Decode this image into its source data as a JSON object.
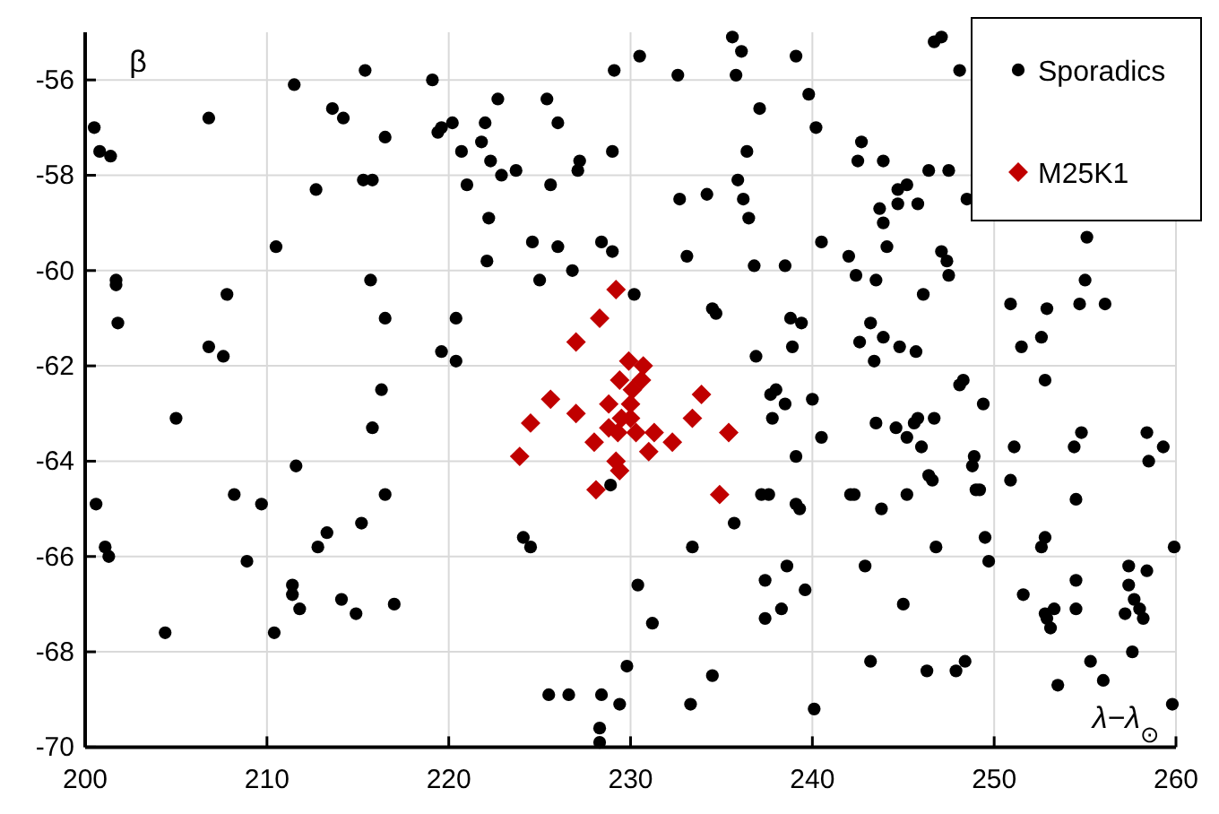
{
  "chart_data": {
    "type": "scatter",
    "xlabel": "λ−λ$_{⊙}$",
    "ylabel": "β",
    "xlim": [
      200,
      260
    ],
    "ylim": [
      -70,
      -55
    ],
    "xticks": [
      200,
      210,
      220,
      230,
      240,
      250,
      260
    ],
    "yticks": [
      -70,
      -68,
      -66,
      -64,
      -62,
      -60,
      -58,
      -56
    ],
    "grid": true,
    "legend": "top right",
    "series": [
      {
        "name": "Sporadics",
        "color": "#000000",
        "marker": "circle",
        "x": [
          200.5,
          200.8,
          201.4,
          206.8,
          211.5,
          213.6,
          214.2,
          215.4,
          216.5,
          219.1,
          219.4,
          219.6,
          220.2,
          212.7,
          215.3,
          215.8,
          210.5,
          201.7,
          201.7,
          215.7,
          207.8,
          216.5,
          220.4,
          201.8,
          206.8,
          207.6,
          219.6,
          220.4,
          216.3,
          235.6,
          236.1,
          239.1,
          230.5,
          229.1,
          232.6,
          235.8,
          222.7,
          225.4,
          237.1,
          239.8,
          240.2,
          222.0,
          226.0,
          221.8,
          220.7,
          222.3,
          222.9,
          223.7,
          227.2,
          227.1,
          229.0,
          236.4,
          221.0,
          225.6,
          235.9,
          232.7,
          234.2,
          236.2,
          222.2,
          236.5,
          224.6,
          226.0,
          228.4,
          229.0,
          240.5,
          222.1,
          226.8,
          233.1,
          236.8,
          238.5,
          225.0,
          230.2,
          234.5,
          234.7,
          238.8,
          239.4,
          238.9,
          236.9,
          238.0,
          228.9,
          237.7,
          238.5,
          240.0,
          240.5,
          237.8,
          239.1,
          237.2,
          237.6,
          239.1,
          239.3,
          235.7,
          233.4,
          224.1,
          224.5,
          230.4,
          237.4,
          238.6,
          239.6,
          231.2,
          238.3,
          237.4,
          229.8,
          234.5,
          225.5,
          226.6,
          228.4,
          229.4,
          233.3,
          240.1,
          228.3,
          228.3,
          215.8,
          205.0,
          211.6,
          200.6,
          208.2,
          209.7,
          216.5,
          215.2,
          213.3,
          212.8,
          201.1,
          201.3,
          208.9,
          211.4,
          211.4,
          211.8,
          214.1,
          214.9,
          217.0,
          204.4,
          210.4,
          246.7,
          247.1,
          248.1,
          242.7,
          242.5,
          243.9,
          246.4,
          247.5,
          248.5,
          244.7,
          245.2,
          243.7,
          244.7,
          245.8,
          243.9,
          244.1,
          242.0,
          242.4,
          243.5,
          247.1,
          247.4,
          247.5,
          246.1,
          255.1,
          255.0,
          250.9,
          252.9,
          254.7,
          256.1,
          243.2,
          242.6,
          243.9,
          243.4,
          244.8,
          245.7,
          251.5,
          252.6,
          248.3,
          248.1,
          252.8,
          249.4,
          243.5,
          244.6,
          245.2,
          245.6,
          245.8,
          246.7,
          246.0,
          248.8,
          248.9,
          251.1,
          254.4,
          254.8,
          258.4,
          259.3,
          258.5,
          250.9,
          254.5,
          242.1,
          242.3,
          243.8,
          245.2,
          246.4,
          246.6,
          249.0,
          249.2,
          246.8,
          249.5,
          249.7,
          242.9,
          245.0,
          252.8,
          252.6,
          259.9,
          251.6,
          254.5,
          257.4,
          258.4,
          257.4,
          257.7,
          258.0,
          258.2,
          257.2,
          254.5,
          252.8,
          253.3,
          252.9,
          253.1,
          257.6,
          255.3,
          256.0,
          253.5,
          243.2,
          246.3,
          247.9,
          248.4,
          259.8
        ],
        "values": [
          -57.0,
          -57.5,
          -57.6,
          -56.8,
          -56.1,
          -56.6,
          -56.8,
          -55.8,
          -57.2,
          -56.0,
          -57.1,
          -57.0,
          -56.9,
          -58.3,
          -58.1,
          -58.1,
          -59.5,
          -60.2,
          -60.3,
          -60.2,
          -60.5,
          -61.0,
          -61.0,
          -61.1,
          -61.6,
          -61.8,
          -61.7,
          -61.9,
          -62.5,
          -55.1,
          -55.4,
          -55.5,
          -55.5,
          -55.8,
          -55.9,
          -55.9,
          -56.4,
          -56.4,
          -56.6,
          -56.3,
          -57.0,
          -56.9,
          -56.9,
          -57.3,
          -57.5,
          -57.7,
          -58.0,
          -57.9,
          -57.7,
          -57.9,
          -57.5,
          -57.5,
          -58.2,
          -58.2,
          -58.1,
          -58.5,
          -58.4,
          -58.5,
          -58.9,
          -58.9,
          -59.4,
          -59.5,
          -59.4,
          -59.6,
          -59.4,
          -59.8,
          -60.0,
          -59.7,
          -59.9,
          -59.9,
          -60.2,
          -60.5,
          -60.8,
          -60.9,
          -61.0,
          -61.1,
          -61.6,
          -61.8,
          -62.5,
          -64.5,
          -62.6,
          -62.8,
          -62.7,
          -63.5,
          -63.1,
          -63.9,
          -64.7,
          -64.7,
          -64.9,
          -65.0,
          -65.3,
          -65.8,
          -65.6,
          -65.8,
          -66.6,
          -66.5,
          -66.2,
          -66.7,
          -67.4,
          -67.1,
          -67.3,
          -68.3,
          -68.5,
          -68.9,
          -68.9,
          -68.9,
          -69.1,
          -69.1,
          -69.2,
          -69.6,
          -69.9,
          -63.3,
          -63.1,
          -64.1,
          -64.9,
          -64.7,
          -64.9,
          -64.7,
          -65.3,
          -65.5,
          -65.8,
          -65.8,
          -66.0,
          -66.1,
          -66.6,
          -66.8,
          -67.1,
          -66.9,
          -67.2,
          -67.0,
          -67.6,
          -67.6,
          -55.2,
          -55.1,
          -55.8,
          -57.3,
          -57.7,
          -57.7,
          -57.9,
          -57.9,
          -58.5,
          -58.3,
          -58.2,
          -58.7,
          -58.6,
          -58.6,
          -59.0,
          -59.5,
          -59.7,
          -60.1,
          -60.2,
          -59.6,
          -59.8,
          -60.1,
          -60.5,
          -59.3,
          -60.2,
          -60.7,
          -60.8,
          -60.7,
          -60.7,
          -61.1,
          -61.5,
          -61.4,
          -61.9,
          -61.6,
          -61.7,
          -61.6,
          -61.4,
          -62.3,
          -62.4,
          -62.3,
          -62.8,
          -63.2,
          -63.3,
          -63.5,
          -63.2,
          -63.1,
          -63.1,
          -63.7,
          -64.1,
          -63.9,
          -63.7,
          -63.7,
          -63.4,
          -63.4,
          -63.7,
          -64.0,
          -64.4,
          -64.8,
          -64.7,
          -64.7,
          -65.0,
          -64.7,
          -64.3,
          -64.4,
          -64.6,
          -64.6,
          -65.8,
          -65.6,
          -66.1,
          -66.2,
          -67.0,
          -65.6,
          -65.8,
          -65.8,
          -66.8,
          -66.5,
          -66.2,
          -66.3,
          -66.6,
          -66.9,
          -67.1,
          -67.3,
          -67.2,
          -67.1,
          -67.2,
          -67.1,
          -67.3,
          -67.5,
          -68.0,
          -68.2,
          -68.6,
          -68.7,
          -68.2,
          -68.4,
          -68.4,
          -68.2,
          -69.1
        ]
      },
      {
        "name": "M25K1",
        "color": "#c00000",
        "marker": "diamond",
        "x": [
          229.2,
          228.3,
          227.0,
          229.9,
          230.7,
          230.6,
          229.4,
          230.1,
          233.9,
          225.6,
          228.8,
          230.0,
          227.0,
          224.5,
          233.4,
          235.4,
          223.9,
          228.0,
          228.8,
          229.3,
          229.5,
          230.3,
          230.0,
          231.3,
          231.0,
          232.3,
          229.2,
          229.4,
          228.1,
          234.9
        ],
        "values": [
          -60.4,
          -61.0,
          -61.5,
          -61.9,
          -62.0,
          -62.3,
          -62.3,
          -62.5,
          -62.6,
          -62.7,
          -62.8,
          -62.8,
          -63.0,
          -63.2,
          -63.1,
          -63.4,
          -63.9,
          -63.6,
          -63.3,
          -63.4,
          -63.1,
          -63.4,
          -63.1,
          -63.4,
          -63.8,
          -63.6,
          -64.0,
          -64.2,
          -64.6,
          -64.7
        ]
      }
    ]
  }
}
